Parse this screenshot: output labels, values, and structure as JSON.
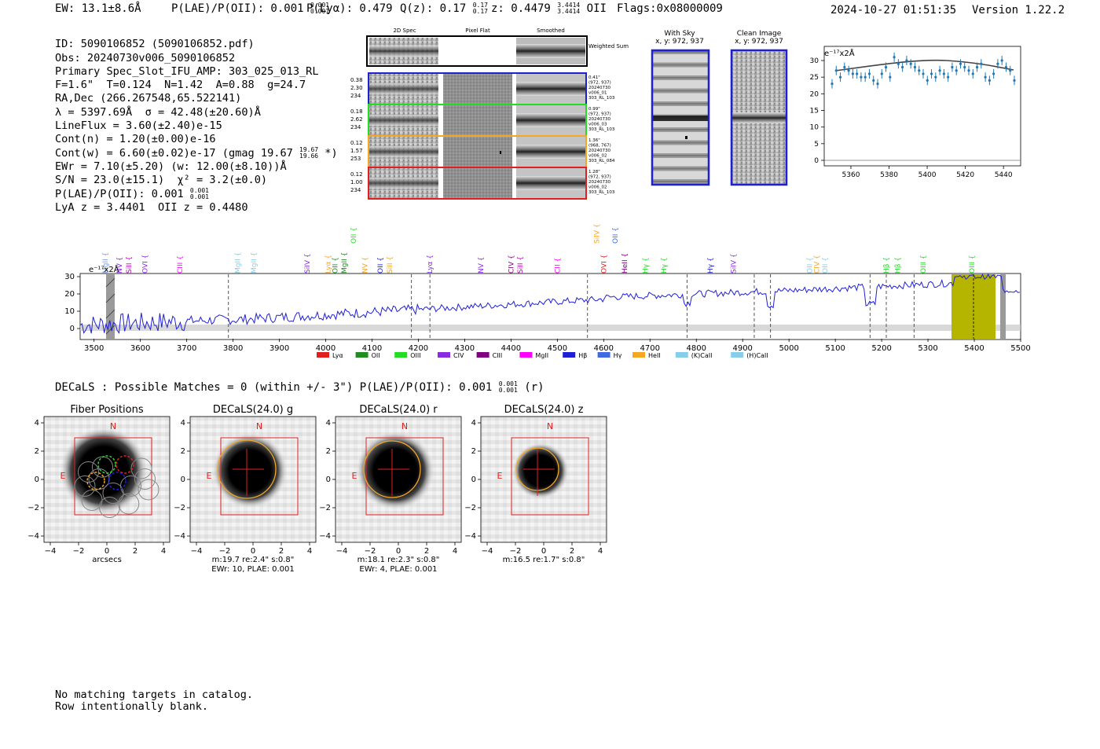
{
  "header": {
    "ew": "EW: 13.1±8.6Å",
    "plae_label": "P(LAE)/P(OII): 0.001",
    "plae_hi": "0.001",
    "plae_lo": "0.001",
    "plya": "P(Lyα): 0.479",
    "qz_label": "Q(z): 0.17",
    "qz_hi": "0.17",
    "qz_lo": "0.17",
    "z_label": "z: 0.4479",
    "z_hi": "3.4414",
    "z_lo": "3.4414",
    "z_line": "OII",
    "flags": "Flags:0x08000009",
    "timestamp": "2024-10-27 01:51:35",
    "version": "Version 1.22.2"
  },
  "info": {
    "id": "ID: 5090106852 (5090106852.pdf)",
    "obs": "Obs: 20240730v006_5090106852",
    "primary": "Primary Spec_Slot_IFU_AMP: 303_025_013_RL",
    "fiber": "F=1.6\"  T=0.124  N=1.42  A=0.88  g=24.7",
    "radec": "RA,Dec (266.267548,65.522141)",
    "lambda": "λ = 5397.69Å  σ = 42.48(±20.60)Å",
    "lineflux": "LineFlux = 3.60(±2.40)e-15",
    "contn": "Cont(n) = 1.20(±0.00)e-16",
    "contw": "Cont(w) = 6.60(±0.02)e-17 (gmag 19.67",
    "contw_hi": "19.67",
    "contw_lo": "19.66",
    "contw_end": "*)",
    "ewr": "EWr = 7.10(±5.20) (w: 12.00(±8.10))Å",
    "sn": "S/N = 23.0(±15.1)  χ² = 3.2(±0.0)",
    "plae": "P(LAE)/P(OII): 0.001",
    "plae_hi": "0.001",
    "plae_lo": "0.001",
    "lya": "LyA z = 3.4401  OII z = 0.4480"
  },
  "cutouts": {
    "col_2d": "2D Spec",
    "col_flat": "Pixel Flat",
    "col_smooth": "Smoothed",
    "weighted": "Weighted Sum",
    "rows": [
      {
        "vals": [
          "0.38",
          "2.30",
          "234"
        ],
        "meta": [
          "0.41\"",
          "(972, 937)",
          "20240730",
          "v006_01",
          "303_RL_103"
        ],
        "color": "#1f1fd8"
      },
      {
        "vals": [
          "0.18",
          "2.62",
          "234"
        ],
        "meta": [
          "0.99\"",
          "(972, 937)",
          "20240730",
          "v006_03",
          "303_RL_103"
        ],
        "color": "#22dd22"
      },
      {
        "vals": [
          "0.12",
          "1.57",
          "253"
        ],
        "meta": [
          "1.36\"",
          "(968, 767)",
          "20240730",
          "v006_02",
          "303_RL_084"
        ],
        "color": "#f5a623"
      },
      {
        "vals": [
          "0.12",
          "1.00",
          "234"
        ],
        "meta": [
          "1.28\"",
          "(972, 937)",
          "20240730",
          "v006_02",
          "303_RL_103"
        ],
        "color": "#e02020"
      }
    ]
  },
  "sky": {
    "with_sky_title": "With Sky",
    "with_sky_xy": "x, y: 972, 937",
    "clean_title": "Clean Image",
    "clean_xy": "x, y: 972, 937"
  },
  "zoom_plot": {
    "unit": "e⁻¹⁷x2Å",
    "x_ticks": [
      "5360",
      "5380",
      "5400",
      "5420",
      "5440"
    ],
    "y_ticks": [
      "0",
      "5",
      "10",
      "15",
      "20",
      "25",
      "30"
    ]
  },
  "spectrum": {
    "unit": "e⁻¹⁷x2Å",
    "x_ticks": [
      "3500",
      "3600",
      "3700",
      "3800",
      "3900",
      "4000",
      "4100",
      "4200",
      "4300",
      "4400",
      "4500",
      "4600",
      "4700",
      "4800",
      "4900",
      "5000",
      "5100",
      "5200",
      "5300",
      "5400",
      "5500"
    ],
    "y_ticks": [
      "0",
      "10",
      "20",
      "30"
    ],
    "line_labels": [
      {
        "t": "MgII",
        "c": "#7b9fe8",
        "w": 3524,
        "row": 1
      },
      {
        "t": "NV",
        "c": "#8a2be2",
        "w": 3555,
        "row": 1
      },
      {
        "t": "SiII",
        "c": "#c000c0",
        "w": 3575,
        "row": 1
      },
      {
        "t": "OVI",
        "c": "#8a2be2",
        "w": 3610,
        "row": 1
      },
      {
        "t": "CIII",
        "c": "#ff00ff",
        "w": 3685,
        "row": 1
      },
      {
        "t": "MgII",
        "c": "#87ceeb",
        "w": 3810,
        "row": 1
      },
      {
        "t": "MgII",
        "c": "#87ceeb",
        "w": 3845,
        "row": 1
      },
      {
        "t": "SiIV",
        "c": "#8a2be2",
        "w": 3960,
        "row": 1
      },
      {
        "t": "Lyα",
        "c": "#f5a623",
        "w": 4005,
        "row": 1
      },
      {
        "t": "OII",
        "c": "#228b22",
        "w": 4020,
        "row": 1
      },
      {
        "t": "MgII",
        "c": "#228b22",
        "w": 4040,
        "row": 1
      },
      {
        "t": "OII",
        "c": "#22dd22",
        "w": 4060,
        "row": 0
      },
      {
        "t": "NV",
        "c": "#f5a623",
        "w": 4085,
        "row": 1
      },
      {
        "t": "OII",
        "c": "#1f1fd8",
        "w": 4118,
        "row": 1
      },
      {
        "t": "SiII",
        "c": "#f5a623",
        "w": 4138,
        "row": 1
      },
      {
        "t": "Lyα",
        "c": "#8a2be2",
        "w": 4225,
        "row": 1
      },
      {
        "t": "NV",
        "c": "#8a2be2",
        "w": 4335,
        "row": 1
      },
      {
        "t": "CIV",
        "c": "#800080",
        "w": 4400,
        "row": 1
      },
      {
        "t": "SiII",
        "c": "#c000c0",
        "w": 4420,
        "row": 1
      },
      {
        "t": "CII",
        "c": "#ff00ff",
        "w": 4500,
        "row": 1
      },
      {
        "t": "SiIV",
        "c": "#f5a623",
        "w": 4585,
        "row": 0
      },
      {
        "t": "OVI",
        "c": "#e02020",
        "w": 4600,
        "row": 1
      },
      {
        "t": "OII",
        "c": "#4169e1",
        "w": 4625,
        "row": 0
      },
      {
        "t": "HeII",
        "c": "#800080",
        "w": 4645,
        "row": 1
      },
      {
        "t": "Hγ",
        "c": "#22dd22",
        "w": 4690,
        "row": 1
      },
      {
        "t": "Hγ",
        "c": "#22dd22",
        "w": 4730,
        "row": 1
      },
      {
        "t": "Hγ",
        "c": "#1f1fd8",
        "w": 4830,
        "row": 1
      },
      {
        "t": "SiIV",
        "c": "#8a2be2",
        "w": 4880,
        "row": 1
      },
      {
        "t": "OII",
        "c": "#87ceeb",
        "w": 5045,
        "row": 1
      },
      {
        "t": "CIV",
        "c": "#f5a623",
        "w": 5060,
        "row": 1
      },
      {
        "t": "OII",
        "c": "#87ceeb",
        "w": 5078,
        "row": 1
      },
      {
        "t": "Hβ",
        "c": "#22dd22",
        "w": 5210,
        "row": 1
      },
      {
        "t": "Hβ",
        "c": "#22dd22",
        "w": 5235,
        "row": 1
      },
      {
        "t": "OIII",
        "c": "#22dd22",
        "w": 5290,
        "row": 1
      },
      {
        "t": "OIII",
        "c": "#22dd22",
        "w": 5395,
        "row": 1
      }
    ],
    "legend": [
      {
        "t": "Lyα",
        "c": "#e02020"
      },
      {
        "t": "OII",
        "c": "#228b22"
      },
      {
        "t": "OIII",
        "c": "#22dd22"
      },
      {
        "t": "CIV",
        "c": "#8a2be2"
      },
      {
        "t": "CIII",
        "c": "#800080"
      },
      {
        "t": "MgII",
        "c": "#ff00ff"
      },
      {
        "t": "Hβ",
        "c": "#1f1fd8"
      },
      {
        "t": "Hγ",
        "c": "#4169e1"
      },
      {
        "t": "HeII",
        "c": "#f5a623"
      },
      {
        "t": "(K)CaII",
        "c": "#87ceeb"
      },
      {
        "t": "(H)CaII",
        "c": "#87ceeb"
      }
    ]
  },
  "decals": {
    "summary": "DECaLS : Possible Matches = 0 (within +/- 3\")  P(LAE)/P(OII): 0.001",
    "summary_hi": "0.001",
    "summary_lo": "0.001",
    "summary_band": "(r)",
    "panels": [
      {
        "title": "Fiber Positions",
        "cap1": "arcsecs",
        "cap2": ""
      },
      {
        "title": "DECaLS(24.0) g",
        "cap1": "m:19.7  re:2.4\"  s:0.8\"",
        "cap2": "EWr: 10, PLAE: 0.001"
      },
      {
        "title": "DECaLS(24.0) r",
        "cap1": "m:18.1  re:2.3\"  s:0.8\"",
        "cap2": "EWr: 4, PLAE: 0.001"
      },
      {
        "title": "DECaLS(24.0) z",
        "cap1": "m:16.5  re:1.7\"  s:0.8\"",
        "cap2": ""
      }
    ],
    "axis_ticks": [
      "−4",
      "−2",
      "0",
      "2",
      "4"
    ],
    "north": "N",
    "east": "E"
  },
  "footer": {
    "line1": "No matching targets in catalog.",
    "line2": "Row intentionally blank."
  }
}
